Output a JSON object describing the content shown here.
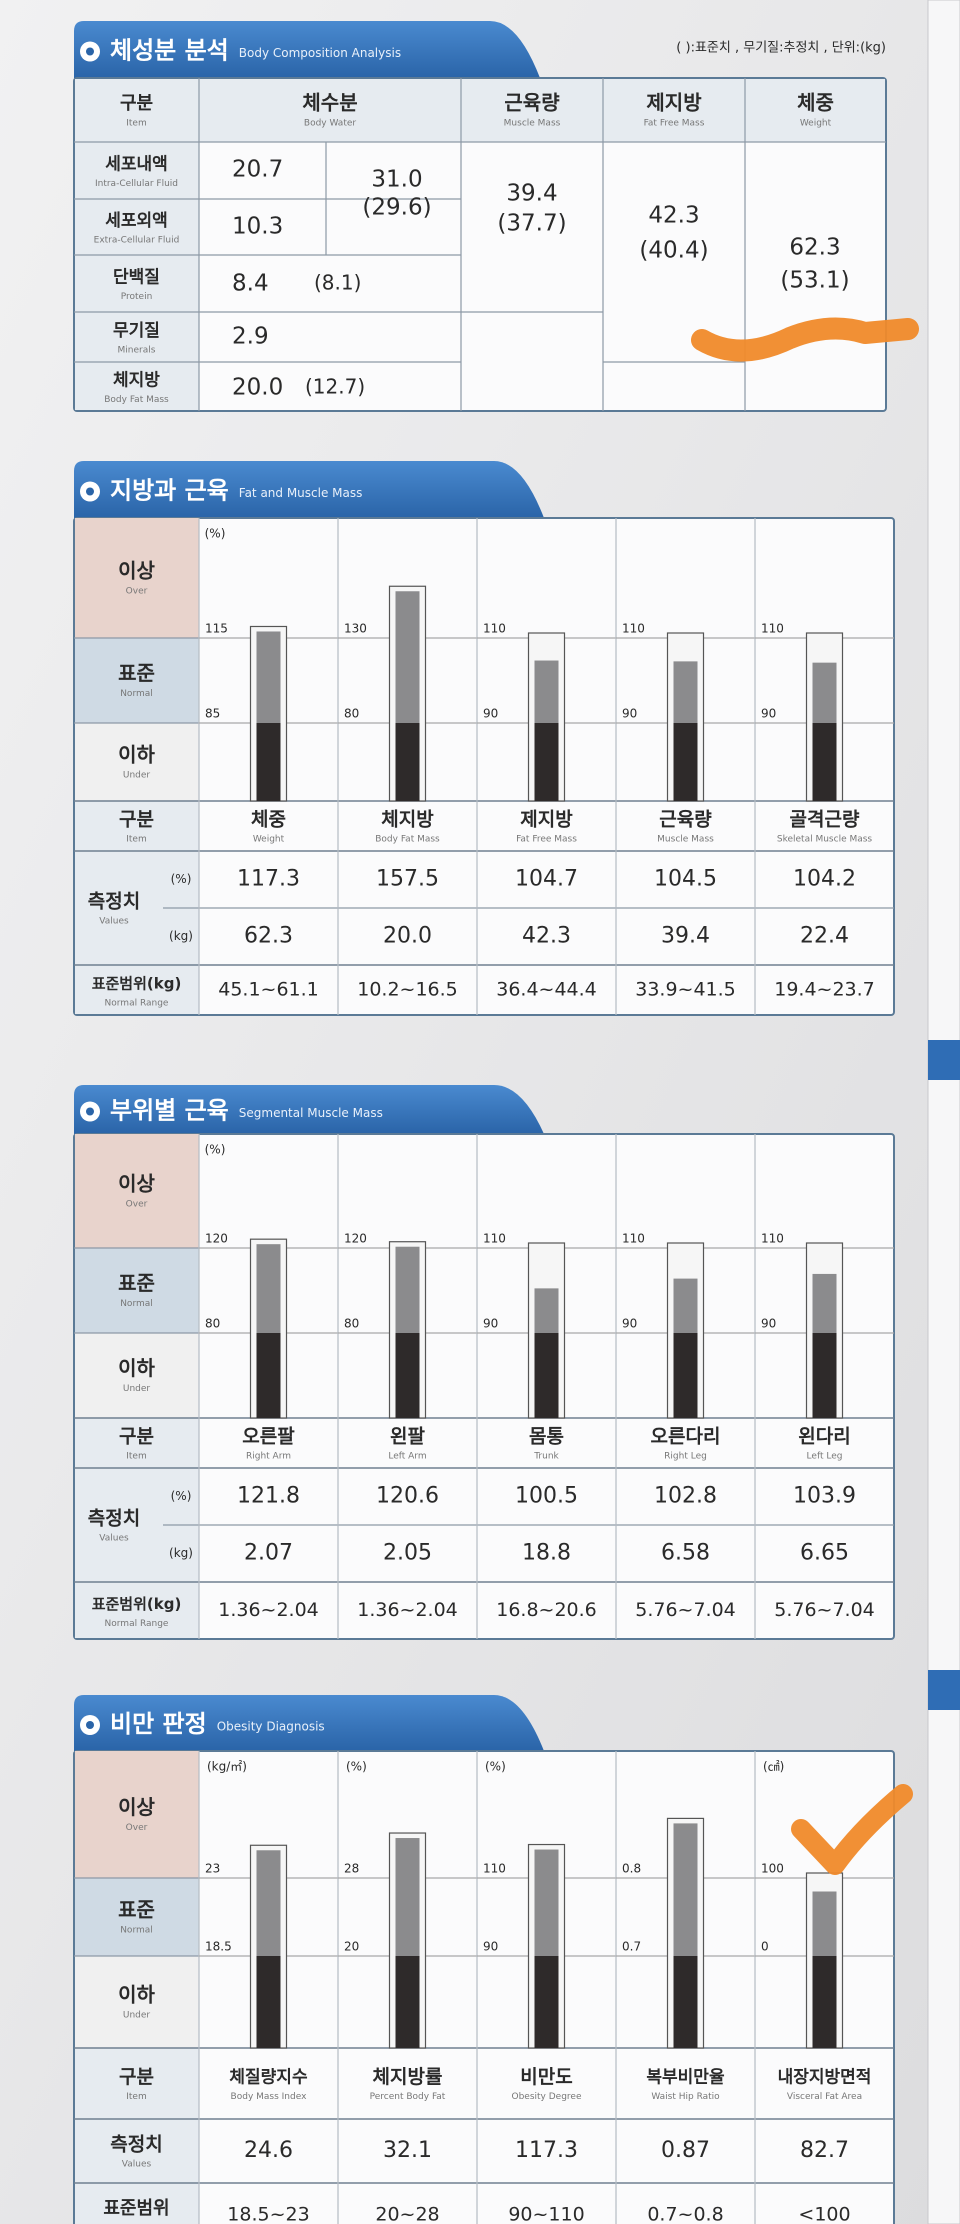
{
  "composition": {
    "title": "체성분 분석",
    "subtitle": "Body Composition Analysis",
    "note": "( ):표준치 , 무기질:추정치 , 단위:(kg)",
    "columns": [
      {
        "name": "구분",
        "en": "Item"
      },
      {
        "name": "체수분",
        "en": "Body Water"
      },
      {
        "name": "근육량",
        "en": "Muscle Mass"
      },
      {
        "name": "제지방",
        "en": "Fat Free Mass"
      },
      {
        "name": "체중",
        "en": "Weight"
      }
    ],
    "rows": [
      {
        "name": "세포내액",
        "en": "Intra-Cellular Fluid"
      },
      {
        "name": "세포외액",
        "en": "Extra-Cellular Fluid"
      },
      {
        "name": "단백질",
        "en": "Protein"
      },
      {
        "name": "무기질",
        "en": "Minerals"
      },
      {
        "name": "체지방",
        "en": "Body Fat Mass"
      }
    ],
    "intracellular": "20.7",
    "extracellular": "10.3",
    "body_water": {
      "value": "31.0",
      "standard": "(29.6)"
    },
    "protein": {
      "value": "8.4",
      "standard": "(8.1)"
    },
    "minerals": "2.9",
    "body_fat": {
      "value": "20.0",
      "standard": "(12.7)"
    },
    "muscle_mass": {
      "value": "39.4",
      "standard": "(37.7)"
    },
    "fat_free_mass": {
      "value": "42.3",
      "standard": "(40.4)"
    },
    "weight": {
      "value": "62.3",
      "standard": "(53.1)"
    }
  },
  "sections": [
    {
      "title": "지방과 근육",
      "subtitle": "Fat and Muscle Mass",
      "unit": "(%)",
      "bands": [
        {
          "name": "이상",
          "en": "Over"
        },
        {
          "name": "표준",
          "en": "Normal"
        },
        {
          "name": "이하",
          "en": "Under"
        }
      ],
      "item_label": {
        "name": "구분",
        "en": "Item"
      },
      "values_label": {
        "name": "측정치",
        "en": "Values"
      },
      "percent_unit": "(%)",
      "kg_unit": "(kg)",
      "range_label": {
        "name": "표준범위(kg)",
        "en": "Normal Range"
      },
      "columns": [
        {
          "name": "체중",
          "en": "Weight",
          "upper": 115,
          "lower": 85,
          "measured": 117.3,
          "kg": "62.3",
          "range": "45.1~61.1"
        },
        {
          "name": "체지방",
          "en": "Body Fat Mass",
          "upper": 130,
          "lower": 80,
          "measured": 157.5,
          "kg": "20.0",
          "range": "10.2~16.5"
        },
        {
          "name": "제지방",
          "en": "Fat Free Mass",
          "upper": 110,
          "lower": 90,
          "measured": 104.7,
          "kg": "42.3",
          "range": "36.4~44.4"
        },
        {
          "name": "근육량",
          "en": "Muscle Mass",
          "upper": 110,
          "lower": 90,
          "measured": 104.5,
          "kg": "39.4",
          "range": "33.9~41.5"
        },
        {
          "name": "골격근량",
          "en": "Skeletal Muscle Mass",
          "upper": 110,
          "lower": 90,
          "measured": 104.2,
          "kg": "22.4",
          "range": "19.4~23.7"
        }
      ]
    },
    {
      "title": "부위별 근육",
      "subtitle": "Segmental Muscle Mass",
      "unit": "(%)",
      "bands": [
        {
          "name": "이상",
          "en": "Over"
        },
        {
          "name": "표준",
          "en": "Normal"
        },
        {
          "name": "이하",
          "en": "Under"
        }
      ],
      "item_label": {
        "name": "구분",
        "en": "Item"
      },
      "values_label": {
        "name": "측정치",
        "en": "Values"
      },
      "percent_unit": "(%)",
      "kg_unit": "(kg)",
      "range_label": {
        "name": "표준범위(kg)",
        "en": "Normal Range"
      },
      "columns": [
        {
          "name": "오른팔",
          "en": "Right Arm",
          "upper": 120,
          "lower": 80,
          "measured": 121.8,
          "kg": "2.07",
          "range": "1.36~2.04"
        },
        {
          "name": "왼팔",
          "en": "Left Arm",
          "upper": 120,
          "lower": 80,
          "measured": 120.6,
          "kg": "2.05",
          "range": "1.36~2.04"
        },
        {
          "name": "몸통",
          "en": "Trunk",
          "upper": 110,
          "lower": 90,
          "measured": 100.5,
          "kg": "18.8",
          "range": "16.8~20.6"
        },
        {
          "name": "오른다리",
          "en": "Right Leg",
          "upper": 110,
          "lower": 90,
          "measured": 102.8,
          "kg": "6.58",
          "range": "5.76~7.04"
        },
        {
          "name": "왼다리",
          "en": "Left Leg",
          "upper": 110,
          "lower": 90,
          "measured": 103.9,
          "kg": "6.65",
          "range": "5.76~7.04"
        }
      ]
    },
    {
      "title": "비만 판정",
      "subtitle": "Obesity Diagnosis",
      "bands": [
        {
          "name": "이상",
          "en": "Over"
        },
        {
          "name": "표준",
          "en": "Normal"
        },
        {
          "name": "이하",
          "en": "Under"
        }
      ],
      "item_label": {
        "name": "구분",
        "en": "Item"
      },
      "values_label": {
        "name": "측정치",
        "en": "Values"
      },
      "range_label": {
        "name": "표준범위"
      },
      "columns": [
        {
          "unit": "(kg/㎡)",
          "name": "체질량지수",
          "en": "Body Mass Index",
          "upper": 23,
          "lower": 18.5,
          "measured": 24.6,
          "range": "18.5~23"
        },
        {
          "unit": "(%)",
          "name": "체지방률",
          "en": "Percent Body Fat",
          "upper": 28,
          "lower": 20,
          "measured": 32.1,
          "range": "20~28"
        },
        {
          "unit": "(%)",
          "name": "비만도",
          "en": "Obesity Degree",
          "upper": 110,
          "lower": 90,
          "measured": 117.3,
          "range": "90~110"
        },
        {
          "name": "복부비만율",
          "en": "Waist Hip Ratio",
          "upper": 0.8,
          "lower": 0.7,
          "measured": 0.87,
          "range": "0.7~0.8"
        },
        {
          "unit": "(㎠)",
          "name": "내장지방면적",
          "en": "Visceral Fat Area",
          "upper": 100,
          "lower": 0,
          "measured": 82.7,
          "range": "<100"
        }
      ]
    }
  ]
}
